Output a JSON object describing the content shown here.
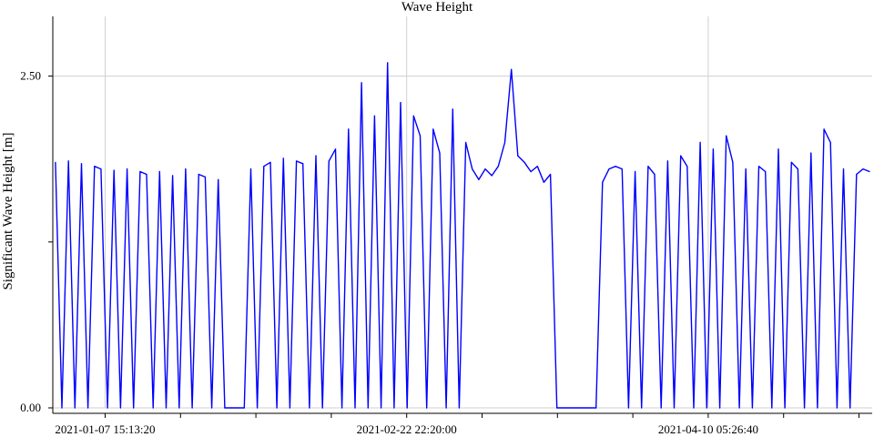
{
  "chart_data": {
    "type": "line",
    "title": "Wave Height",
    "xlabel": "",
    "ylabel": "Significant Wave Height [m]",
    "x_tick_labels": [
      "2021-01-07 15:13:20",
      "2021-02-22 22:20:00",
      "2021-04-10 05:26:40"
    ],
    "y_tick_labels": [
      "0.00",
      "2.50"
    ],
    "ylim": [
      0,
      2.95
    ],
    "grid": true,
    "line_color": "#0000ff",
    "series": [
      {
        "x": [
          "2020-12-31",
          "2021-01-01",
          "2021-01-02",
          "2021-01-03",
          "2021-01-04",
          "2021-01-05",
          "2021-01-06",
          "2021-01-07",
          "2021-01-08",
          "2021-01-09",
          "2021-01-10",
          "2021-01-11",
          "2021-01-12",
          "2021-01-13",
          "2021-01-14",
          "2021-01-15",
          "2021-01-16",
          "2021-01-17",
          "2021-01-18",
          "2021-01-19",
          "2021-01-20",
          "2021-01-21",
          "2021-01-22",
          "2021-01-23",
          "2021-01-24",
          "2021-01-25",
          "2021-01-26",
          "2021-01-27",
          "2021-01-28",
          "2021-01-29",
          "2021-01-30",
          "2021-01-31",
          "2021-02-01",
          "2021-02-02",
          "2021-02-03",
          "2021-02-04",
          "2021-02-05",
          "2021-02-06",
          "2021-02-07",
          "2021-02-08",
          "2021-02-09",
          "2021-02-10",
          "2021-02-11",
          "2021-02-12",
          "2021-02-13",
          "2021-02-14",
          "2021-02-15",
          "2021-02-16",
          "2021-02-17",
          "2021-02-18",
          "2021-02-19",
          "2021-02-20",
          "2021-02-21",
          "2021-02-22",
          "2021-02-23",
          "2021-02-24",
          "2021-02-25",
          "2021-02-26",
          "2021-02-27",
          "2021-02-28",
          "2021-03-01",
          "2021-03-02",
          "2021-03-03",
          "2021-03-04",
          "2021-03-05",
          "2021-03-06",
          "2021-03-07",
          "2021-03-08",
          "2021-03-09",
          "2021-03-10",
          "2021-03-11",
          "2021-03-12",
          "2021-03-13",
          "2021-03-14",
          "2021-03-15",
          "2021-03-16",
          "2021-03-17",
          "2021-03-18",
          "2021-03-19",
          "2021-03-20",
          "2021-03-21",
          "2021-03-22",
          "2021-03-23",
          "2021-03-24",
          "2021-03-25",
          "2021-03-26",
          "2021-03-27",
          "2021-03-28",
          "2021-03-29",
          "2021-03-30",
          "2021-03-31",
          "2021-04-01",
          "2021-04-02",
          "2021-04-03",
          "2021-04-04",
          "2021-04-05",
          "2021-04-06",
          "2021-04-07",
          "2021-04-08",
          "2021-04-09",
          "2021-04-10",
          "2021-04-11",
          "2021-04-12",
          "2021-04-13",
          "2021-04-14",
          "2021-04-15",
          "2021-04-16",
          "2021-04-17",
          "2021-04-18",
          "2021-04-19",
          "2021-04-20",
          "2021-04-21",
          "2021-04-22",
          "2021-04-23",
          "2021-04-24",
          "2021-04-25",
          "2021-04-26",
          "2021-04-27",
          "2021-04-28",
          "2021-04-29",
          "2021-04-30",
          "2021-05-01",
          "2021-05-02",
          "2021-05-03",
          "2021-05-04",
          "2021-05-05"
        ],
        "y": [
          1.85,
          0.0,
          1.86,
          0.0,
          1.84,
          0.0,
          1.82,
          1.8,
          0.0,
          1.79,
          0.0,
          1.8,
          0.0,
          1.78,
          1.76,
          0.0,
          1.78,
          0.0,
          1.75,
          0.0,
          1.8,
          0.0,
          1.76,
          1.74,
          0.0,
          1.72,
          0.0,
          0.0,
          0.0,
          0.0,
          1.8,
          0.0,
          1.82,
          1.85,
          0.0,
          1.88,
          0.0,
          1.86,
          1.84,
          0.0,
          1.9,
          0.0,
          1.86,
          1.95,
          0.0,
          2.1,
          0.0,
          2.45,
          0.0,
          2.2,
          0.0,
          2.6,
          0.0,
          2.3,
          0.0,
          2.2,
          2.05,
          0.0,
          2.1,
          1.92,
          0.0,
          2.25,
          0.0,
          2.0,
          1.8,
          1.72,
          1.8,
          1.75,
          1.82,
          2.0,
          2.55,
          1.9,
          1.85,
          1.78,
          1.82,
          1.7,
          1.76,
          0.0,
          0.0,
          0.0,
          0.0,
          0.0,
          0.0,
          0.0,
          1.7,
          1.8,
          1.82,
          1.8,
          0.0,
          1.78,
          0.0,
          1.82,
          1.76,
          0.0,
          1.86,
          0.0,
          1.9,
          1.82,
          0.0,
          2.0,
          0.0,
          1.95,
          0.0,
          2.05,
          1.85,
          0.0,
          1.8,
          0.0,
          1.82,
          1.78,
          0.0,
          1.95,
          0.0,
          1.85,
          1.8,
          0.0,
          1.92,
          0.0,
          2.1,
          2.0,
          0.0,
          1.8,
          0.0,
          1.76,
          1.8,
          1.78
        ]
      }
    ]
  }
}
